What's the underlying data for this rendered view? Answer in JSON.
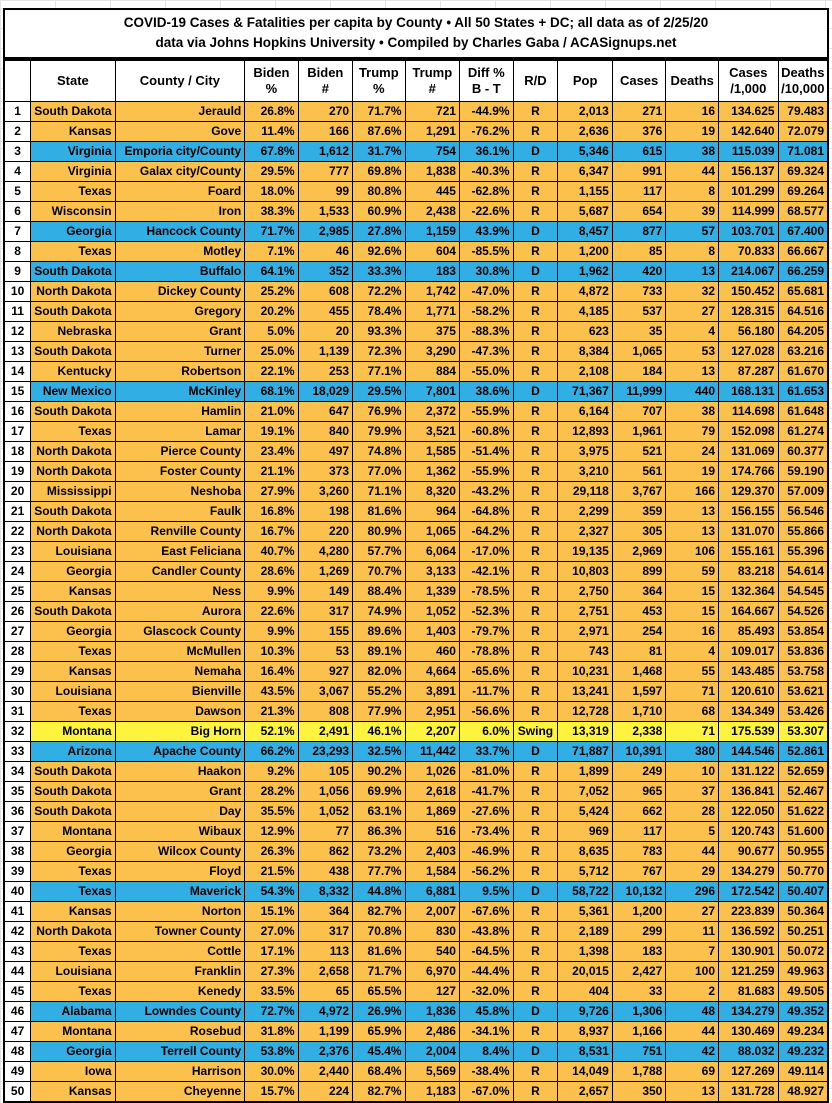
{
  "title": {
    "line1": "COVID-19 Cases & Fatalities per capita by County • All 50 States + DC; all data as of 2/25/20",
    "line2": "data via Johns Hopkins University • Compiled by Charles Gaba / ACASignups.net"
  },
  "colors": {
    "republican_row": "#FCC04C",
    "democrat_row": "#31AEE3",
    "swing_row": "#FEF440",
    "grid_line": "#000000",
    "header_bg": "#FFFFFF",
    "text": "#000000"
  },
  "table": {
    "columns": [
      {
        "key": "rank",
        "label": ""
      },
      {
        "key": "state",
        "label": "State"
      },
      {
        "key": "county",
        "label": "County / City"
      },
      {
        "key": "biden-pct",
        "label": "Biden\n%"
      },
      {
        "key": "biden-count",
        "label": "Biden\n#"
      },
      {
        "key": "trump-pct",
        "label": "Trump\n%"
      },
      {
        "key": "trump-count",
        "label": "Trump\n#"
      },
      {
        "key": "diff-pct",
        "label": "Diff %\nB - T"
      },
      {
        "key": "party",
        "label": "R/D"
      },
      {
        "key": "population",
        "label": "Pop"
      },
      {
        "key": "cases",
        "label": "Cases"
      },
      {
        "key": "deaths",
        "label": "Deaths"
      },
      {
        "key": "cases-per-1000",
        "label": "Cases\n/1,000"
      },
      {
        "key": "deaths-per-10000",
        "label": "Deaths\n/10,000"
      }
    ],
    "field_keys": [
      "rank",
      "state",
      "county",
      "biden-pct",
      "biden-count",
      "trump-pct",
      "trump-count",
      "diff-pct",
      "party",
      "population",
      "cases",
      "deaths",
      "cases-per-1000",
      "deaths-per-10000"
    ],
    "rows": [
      [
        "1",
        "South Dakota",
        "Jerauld",
        "26.8%",
        "270",
        "71.7%",
        "721",
        "-44.9%",
        "R",
        "2,013",
        "271",
        "16",
        "134.625",
        "79.483"
      ],
      [
        "2",
        "Kansas",
        "Gove",
        "11.4%",
        "166",
        "87.6%",
        "1,291",
        "-76.2%",
        "R",
        "2,636",
        "376",
        "19",
        "142.640",
        "72.079"
      ],
      [
        "3",
        "Virginia",
        "Emporia city/County",
        "67.8%",
        "1,612",
        "31.7%",
        "754",
        "36.1%",
        "D",
        "5,346",
        "615",
        "38",
        "115.039",
        "71.081"
      ],
      [
        "4",
        "Virginia",
        "Galax city/County",
        "29.5%",
        "777",
        "69.8%",
        "1,838",
        "-40.3%",
        "R",
        "6,347",
        "991",
        "44",
        "156.137",
        "69.324"
      ],
      [
        "5",
        "Texas",
        "Foard",
        "18.0%",
        "99",
        "80.8%",
        "445",
        "-62.8%",
        "R",
        "1,155",
        "117",
        "8",
        "101.299",
        "69.264"
      ],
      [
        "6",
        "Wisconsin",
        "Iron",
        "38.3%",
        "1,533",
        "60.9%",
        "2,438",
        "-22.6%",
        "R",
        "5,687",
        "654",
        "39",
        "114.999",
        "68.577"
      ],
      [
        "7",
        "Georgia",
        "Hancock County",
        "71.7%",
        "2,985",
        "27.8%",
        "1,159",
        "43.9%",
        "D",
        "8,457",
        "877",
        "57",
        "103.701",
        "67.400"
      ],
      [
        "8",
        "Texas",
        "Motley",
        "7.1%",
        "46",
        "92.6%",
        "604",
        "-85.5%",
        "R",
        "1,200",
        "85",
        "8",
        "70.833",
        "66.667"
      ],
      [
        "9",
        "South Dakota",
        "Buffalo",
        "64.1%",
        "352",
        "33.3%",
        "183",
        "30.8%",
        "D",
        "1,962",
        "420",
        "13",
        "214.067",
        "66.259"
      ],
      [
        "10",
        "North Dakota",
        "Dickey County",
        "25.2%",
        "608",
        "72.2%",
        "1,742",
        "-47.0%",
        "R",
        "4,872",
        "733",
        "32",
        "150.452",
        "65.681"
      ],
      [
        "11",
        "South Dakota",
        "Gregory",
        "20.2%",
        "455",
        "78.4%",
        "1,771",
        "-58.2%",
        "R",
        "4,185",
        "537",
        "27",
        "128.315",
        "64.516"
      ],
      [
        "12",
        "Nebraska",
        "Grant",
        "5.0%",
        "20",
        "93.3%",
        "375",
        "-88.3%",
        "R",
        "623",
        "35",
        "4",
        "56.180",
        "64.205"
      ],
      [
        "13",
        "South Dakota",
        "Turner",
        "25.0%",
        "1,139",
        "72.3%",
        "3,290",
        "-47.3%",
        "R",
        "8,384",
        "1,065",
        "53",
        "127.028",
        "63.216"
      ],
      [
        "14",
        "Kentucky",
        "Robertson",
        "22.1%",
        "253",
        "77.1%",
        "884",
        "-55.0%",
        "R",
        "2,108",
        "184",
        "13",
        "87.287",
        "61.670"
      ],
      [
        "15",
        "New Mexico",
        "McKinley",
        "68.1%",
        "18,029",
        "29.5%",
        "7,801",
        "38.6%",
        "D",
        "71,367",
        "11,999",
        "440",
        "168.131",
        "61.653"
      ],
      [
        "16",
        "South Dakota",
        "Hamlin",
        "21.0%",
        "647",
        "76.9%",
        "2,372",
        "-55.9%",
        "R",
        "6,164",
        "707",
        "38",
        "114.698",
        "61.648"
      ],
      [
        "17",
        "Texas",
        "Lamar",
        "19.1%",
        "840",
        "79.9%",
        "3,521",
        "-60.8%",
        "R",
        "12,893",
        "1,961",
        "79",
        "152.098",
        "61.274"
      ],
      [
        "18",
        "North Dakota",
        "Pierce County",
        "23.4%",
        "497",
        "74.8%",
        "1,585",
        "-51.4%",
        "R",
        "3,975",
        "521",
        "24",
        "131.069",
        "60.377"
      ],
      [
        "19",
        "North Dakota",
        "Foster County",
        "21.1%",
        "373",
        "77.0%",
        "1,362",
        "-55.9%",
        "R",
        "3,210",
        "561",
        "19",
        "174.766",
        "59.190"
      ],
      [
        "20",
        "Mississippi",
        "Neshoba",
        "27.9%",
        "3,260",
        "71.1%",
        "8,320",
        "-43.2%",
        "R",
        "29,118",
        "3,767",
        "166",
        "129.370",
        "57.009"
      ],
      [
        "21",
        "South Dakota",
        "Faulk",
        "16.8%",
        "198",
        "81.6%",
        "964",
        "-64.8%",
        "R",
        "2,299",
        "359",
        "13",
        "156.155",
        "56.546"
      ],
      [
        "22",
        "North Dakota",
        "Renville County",
        "16.7%",
        "220",
        "80.9%",
        "1,065",
        "-64.2%",
        "R",
        "2,327",
        "305",
        "13",
        "131.070",
        "55.866"
      ],
      [
        "23",
        "Louisiana",
        "East Feliciana",
        "40.7%",
        "4,280",
        "57.7%",
        "6,064",
        "-17.0%",
        "R",
        "19,135",
        "2,969",
        "106",
        "155.161",
        "55.396"
      ],
      [
        "24",
        "Georgia",
        "Candler County",
        "28.6%",
        "1,269",
        "70.7%",
        "3,133",
        "-42.1%",
        "R",
        "10,803",
        "899",
        "59",
        "83.218",
        "54.614"
      ],
      [
        "25",
        "Kansas",
        "Ness",
        "9.9%",
        "149",
        "88.4%",
        "1,339",
        "-78.5%",
        "R",
        "2,750",
        "364",
        "15",
        "132.364",
        "54.545"
      ],
      [
        "26",
        "South Dakota",
        "Aurora",
        "22.6%",
        "317",
        "74.9%",
        "1,052",
        "-52.3%",
        "R",
        "2,751",
        "453",
        "15",
        "164.667",
        "54.526"
      ],
      [
        "27",
        "Georgia",
        "Glascock County",
        "9.9%",
        "155",
        "89.6%",
        "1,403",
        "-79.7%",
        "R",
        "2,971",
        "254",
        "16",
        "85.493",
        "53.854"
      ],
      [
        "28",
        "Texas",
        "McMullen",
        "10.3%",
        "53",
        "89.1%",
        "460",
        "-78.8%",
        "R",
        "743",
        "81",
        "4",
        "109.017",
        "53.836"
      ],
      [
        "29",
        "Kansas",
        "Nemaha",
        "16.4%",
        "927",
        "82.0%",
        "4,664",
        "-65.6%",
        "R",
        "10,231",
        "1,468",
        "55",
        "143.485",
        "53.758"
      ],
      [
        "30",
        "Louisiana",
        "Bienville",
        "43.5%",
        "3,067",
        "55.2%",
        "3,891",
        "-11.7%",
        "R",
        "13,241",
        "1,597",
        "71",
        "120.610",
        "53.621"
      ],
      [
        "31",
        "Texas",
        "Dawson",
        "21.3%",
        "808",
        "77.9%",
        "2,951",
        "-56.6%",
        "R",
        "12,728",
        "1,710",
        "68",
        "134.349",
        "53.426"
      ],
      [
        "32",
        "Montana",
        "Big Horn",
        "52.1%",
        "2,491",
        "46.1%",
        "2,207",
        "6.0%",
        "Swing",
        "13,319",
        "2,338",
        "71",
        "175.539",
        "53.307"
      ],
      [
        "33",
        "Arizona",
        "Apache County",
        "66.2%",
        "23,293",
        "32.5%",
        "11,442",
        "33.7%",
        "D",
        "71,887",
        "10,391",
        "380",
        "144.546",
        "52.861"
      ],
      [
        "34",
        "South Dakota",
        "Haakon",
        "9.2%",
        "105",
        "90.2%",
        "1,026",
        "-81.0%",
        "R",
        "1,899",
        "249",
        "10",
        "131.122",
        "52.659"
      ],
      [
        "35",
        "South Dakota",
        "Grant",
        "28.2%",
        "1,056",
        "69.9%",
        "2,618",
        "-41.7%",
        "R",
        "7,052",
        "965",
        "37",
        "136.841",
        "52.467"
      ],
      [
        "36",
        "South Dakota",
        "Day",
        "35.5%",
        "1,052",
        "63.1%",
        "1,869",
        "-27.6%",
        "R",
        "5,424",
        "662",
        "28",
        "122.050",
        "51.622"
      ],
      [
        "37",
        "Montana",
        "Wibaux",
        "12.9%",
        "77",
        "86.3%",
        "516",
        "-73.4%",
        "R",
        "969",
        "117",
        "5",
        "120.743",
        "51.600"
      ],
      [
        "38",
        "Georgia",
        "Wilcox County",
        "26.3%",
        "862",
        "73.2%",
        "2,403",
        "-46.9%",
        "R",
        "8,635",
        "783",
        "44",
        "90.677",
        "50.955"
      ],
      [
        "39",
        "Texas",
        "Floyd",
        "21.5%",
        "438",
        "77.7%",
        "1,584",
        "-56.2%",
        "R",
        "5,712",
        "767",
        "29",
        "134.279",
        "50.770"
      ],
      [
        "40",
        "Texas",
        "Maverick",
        "54.3%",
        "8,332",
        "44.8%",
        "6,881",
        "9.5%",
        "D",
        "58,722",
        "10,132",
        "296",
        "172.542",
        "50.407"
      ],
      [
        "41",
        "Kansas",
        "Norton",
        "15.1%",
        "364",
        "82.7%",
        "2,007",
        "-67.6%",
        "R",
        "5,361",
        "1,200",
        "27",
        "223.839",
        "50.364"
      ],
      [
        "42",
        "North Dakota",
        "Towner County",
        "27.0%",
        "317",
        "70.8%",
        "830",
        "-43.8%",
        "R",
        "2,189",
        "299",
        "11",
        "136.592",
        "50.251"
      ],
      [
        "43",
        "Texas",
        "Cottle",
        "17.1%",
        "113",
        "81.6%",
        "540",
        "-64.5%",
        "R",
        "1,398",
        "183",
        "7",
        "130.901",
        "50.072"
      ],
      [
        "44",
        "Louisiana",
        "Franklin",
        "27.3%",
        "2,658",
        "71.7%",
        "6,970",
        "-44.4%",
        "R",
        "20,015",
        "2,427",
        "100",
        "121.259",
        "49.963"
      ],
      [
        "45",
        "Texas",
        "Kenedy",
        "33.5%",
        "65",
        "65.5%",
        "127",
        "-32.0%",
        "R",
        "404",
        "33",
        "2",
        "81.683",
        "49.505"
      ],
      [
        "46",
        "Alabama",
        "Lowndes County",
        "72.7%",
        "4,972",
        "26.9%",
        "1,836",
        "45.8%",
        "D",
        "9,726",
        "1,306",
        "48",
        "134.279",
        "49.352"
      ],
      [
        "47",
        "Montana",
        "Rosebud",
        "31.8%",
        "1,199",
        "65.9%",
        "2,486",
        "-34.1%",
        "R",
        "8,937",
        "1,166",
        "44",
        "130.469",
        "49.234"
      ],
      [
        "48",
        "Georgia",
        "Terrell County",
        "53.8%",
        "2,376",
        "45.4%",
        "2,004",
        "8.4%",
        "D",
        "8,531",
        "751",
        "42",
        "88.032",
        "49.232"
      ],
      [
        "49",
        "Iowa",
        "Harrison",
        "30.0%",
        "2,440",
        "68.4%",
        "5,569",
        "-38.4%",
        "R",
        "14,049",
        "1,788",
        "69",
        "127.269",
        "49.114"
      ],
      [
        "50",
        "Kansas",
        "Cheyenne",
        "15.7%",
        "224",
        "82.7%",
        "1,183",
        "-67.0%",
        "R",
        "2,657",
        "350",
        "13",
        "131.728",
        "48.927"
      ]
    ]
  }
}
